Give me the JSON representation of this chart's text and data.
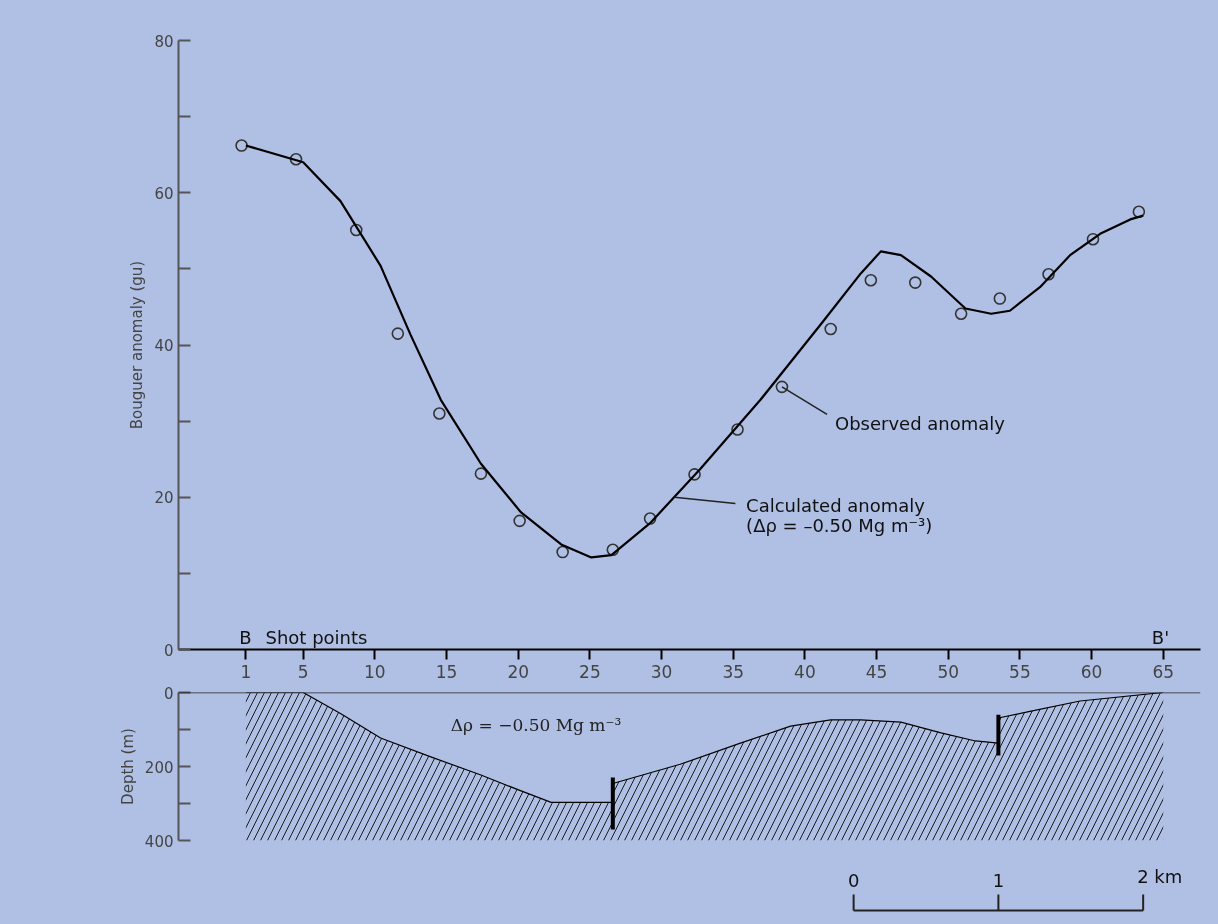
{
  "chart_data": [
    {
      "type": "scatter",
      "ylabel": "Bouguer anomaly (gu)",
      "xlabel": "Shot points",
      "xlim": [
        -3.7,
        67.6
      ],
      "ylim": [
        0,
        80
      ],
      "xticks": [
        1,
        5,
        10,
        15,
        20,
        25,
        30,
        35,
        40,
        45,
        50,
        55,
        60,
        65
      ],
      "yticks": [
        0,
        {
          "value": 10,
          "label": null
        },
        20,
        {
          "value": 30,
          "label": null
        },
        40,
        {
          "value": 50,
          "label": null
        },
        60,
        {
          "value": 70,
          "label": null
        },
        80
      ],
      "grid": false,
      "series": [
        {
          "type": "scatter",
          "marker": "circle",
          "color": "#333333",
          "x": [
            0.7,
            4.5,
            8.7,
            11.6,
            14.5,
            17.4,
            20.1,
            23.1,
            26.6,
            29.2,
            32.3,
            35.3,
            38.4,
            41.8,
            44.6,
            47.7,
            50.9,
            53.6,
            57.0,
            60.1,
            63.3
          ],
          "values": [
            66.2,
            64.4,
            55.1,
            41.5,
            31.0,
            23.1,
            16.9,
            12.8,
            13.1,
            17.2,
            23.0,
            28.9,
            34.5,
            42.1,
            48.5,
            48.2,
            44.1,
            46.1,
            49.3,
            53.9,
            57.5
          ]
        },
        {
          "type": "line",
          "color": "#000000",
          "line_style": "solid",
          "x": [
            1,
            5,
            7.6,
            10.4,
            12.5,
            14.6,
            17.4,
            20.2,
            23,
            25.1,
            26.5,
            29.2,
            32.7,
            36.9,
            41.1,
            43.9,
            45.3,
            46.7,
            48.8,
            51.2,
            53,
            54.3,
            56.4,
            58.5,
            60.6,
            62.7,
            63.6
          ],
          "values": [
            66.2,
            64,
            58.9,
            50.4,
            41.3,
            32.8,
            24.4,
            18.0,
            13.8,
            12.1,
            12.4,
            16.6,
            23.7,
            32.8,
            42.7,
            49.4,
            52.3,
            51.8,
            49.0,
            44.8,
            44.1,
            44.5,
            47.6,
            51.8,
            54.6,
            56.5,
            57.0
          ]
        }
      ],
      "annotations": [
        {
          "text": "Observed anomaly",
          "x": 38.4,
          "y": 34.5
        },
        {
          "text": "Calculated anomaly\n(Δρ = –0.50 Mg m⁻³)",
          "x": 30.9,
          "y": 20.0
        },
        "B",
        "B'"
      ]
    },
    {
      "type": "line",
      "ylabel": "Depth (m)",
      "xlim": [
        -3.7,
        67.6
      ],
      "ylim": [
        400,
        0
      ],
      "yticks": [
        0,
        {
          "value": 100,
          "label": null
        },
        200,
        {
          "value": 300,
          "label": null
        },
        400
      ],
      "tick_labels": "y",
      "grid": false,
      "ref_lines": [
        {
          "axis": "y",
          "value": 0,
          "label": null
        }
      ],
      "series": [
        {
          "color": "#000000",
          "x": [
            1,
            5,
            7.6,
            10.4,
            13.9,
            17.4,
            20.2,
            22.3,
            26.6,
            26.6,
            31.3,
            35.5,
            39,
            41.8,
            43.9,
            46.7,
            49.5,
            51.9,
            53.5,
            53.5,
            55.7,
            59.2,
            65
          ],
          "values": [
            0,
            0,
            57,
            123,
            174,
            223,
            266,
            297,
            297,
            246,
            194,
            137,
            91,
            74,
            74,
            80,
            109,
            131,
            137,
            69,
            51,
            23,
            0
          ],
          "lower": [
            0,
            0,
            57,
            123,
            174,
            223,
            266,
            297,
            297,
            246,
            194,
            137,
            91,
            74,
            74,
            80,
            109,
            131,
            137,
            69,
            51,
            23,
            0
          ],
          "upper": [
            400,
            400,
            400,
            400,
            400,
            400,
            400,
            400,
            400,
            400,
            400,
            400,
            400,
            400,
            400,
            400,
            400,
            400,
            400,
            400,
            400,
            400,
            400
          ]
        },
        {
          "color": "#000000",
          "x": [
            26.6,
            26.6
          ],
          "values": [
            230,
            370
          ]
        },
        {
          "color": "#000000",
          "x": [
            53.5,
            53.5
          ],
          "values": [
            60,
            170
          ]
        }
      ],
      "annotations": [
        "Δρ = −0.50 Mg m⁻³",
        "0",
        "1",
        "2 km"
      ]
    }
  ]
}
